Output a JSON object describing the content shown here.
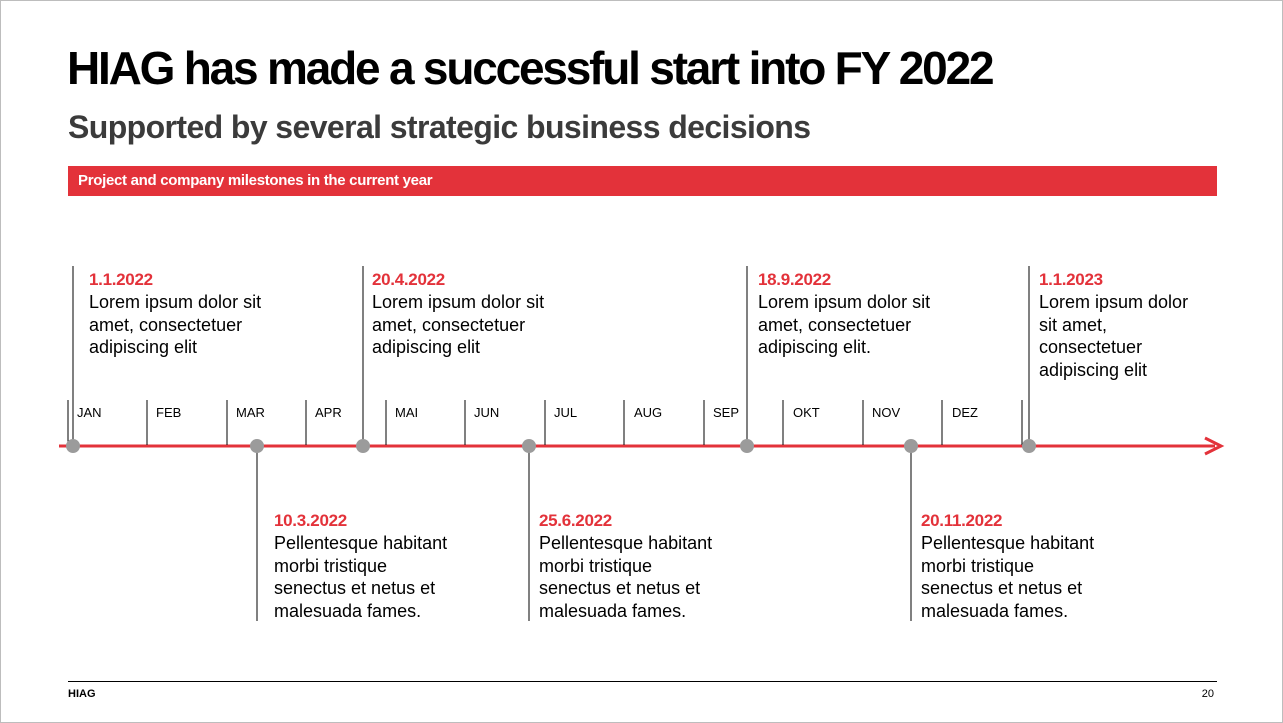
{
  "title": "HIAG has made a successful start into FY 2022",
  "subtitle": "Supported by several strategic business decisions",
  "banner": "Project and company milestones in the current year",
  "colors": {
    "accent": "#e3323a",
    "marker": "#9b9b9b",
    "subtitle": "#3b3b3b"
  },
  "months": [
    "JAN",
    "FEB",
    "MAR",
    "APR",
    "MAI",
    "JUN",
    "JUL",
    "AUG",
    "SEP",
    "OKT",
    "NOV",
    "DEZ"
  ],
  "events_above": [
    {
      "date": "1.1.2022",
      "lines": [
        "Lorem ipsum dolor sit",
        "amet, consectetuer",
        "adipiscing elit"
      ]
    },
    {
      "date": "20.4.2022",
      "lines": [
        "Lorem ipsum dolor sit",
        "amet, consectetuer",
        "adipiscing elit"
      ]
    },
    {
      "date": "18.9.2022",
      "lines": [
        "Lorem ipsum dolor sit",
        "amet, consectetuer",
        "adipiscing elit."
      ]
    },
    {
      "date": "1.1.2023",
      "lines": [
        "Lorem ipsum dolor",
        "sit amet,",
        "consectetuer",
        "adipiscing elit"
      ]
    }
  ],
  "events_below": [
    {
      "date": "10.3.2022",
      "lines": [
        "Pellentesque habitant",
        "morbi tristique",
        "senectus et netus et",
        "malesuada fames."
      ]
    },
    {
      "date": "25.6.2022",
      "lines": [
        "Pellentesque habitant",
        "morbi tristique",
        "senectus et netus et",
        "malesuada fames."
      ]
    },
    {
      "date": "20.11.2022",
      "lines": [
        "Pellentesque habitant",
        "morbi tristique",
        "senectus et netus et",
        "malesuada fames."
      ]
    }
  ],
  "footer": {
    "company": "HIAG",
    "page_number": "20"
  }
}
